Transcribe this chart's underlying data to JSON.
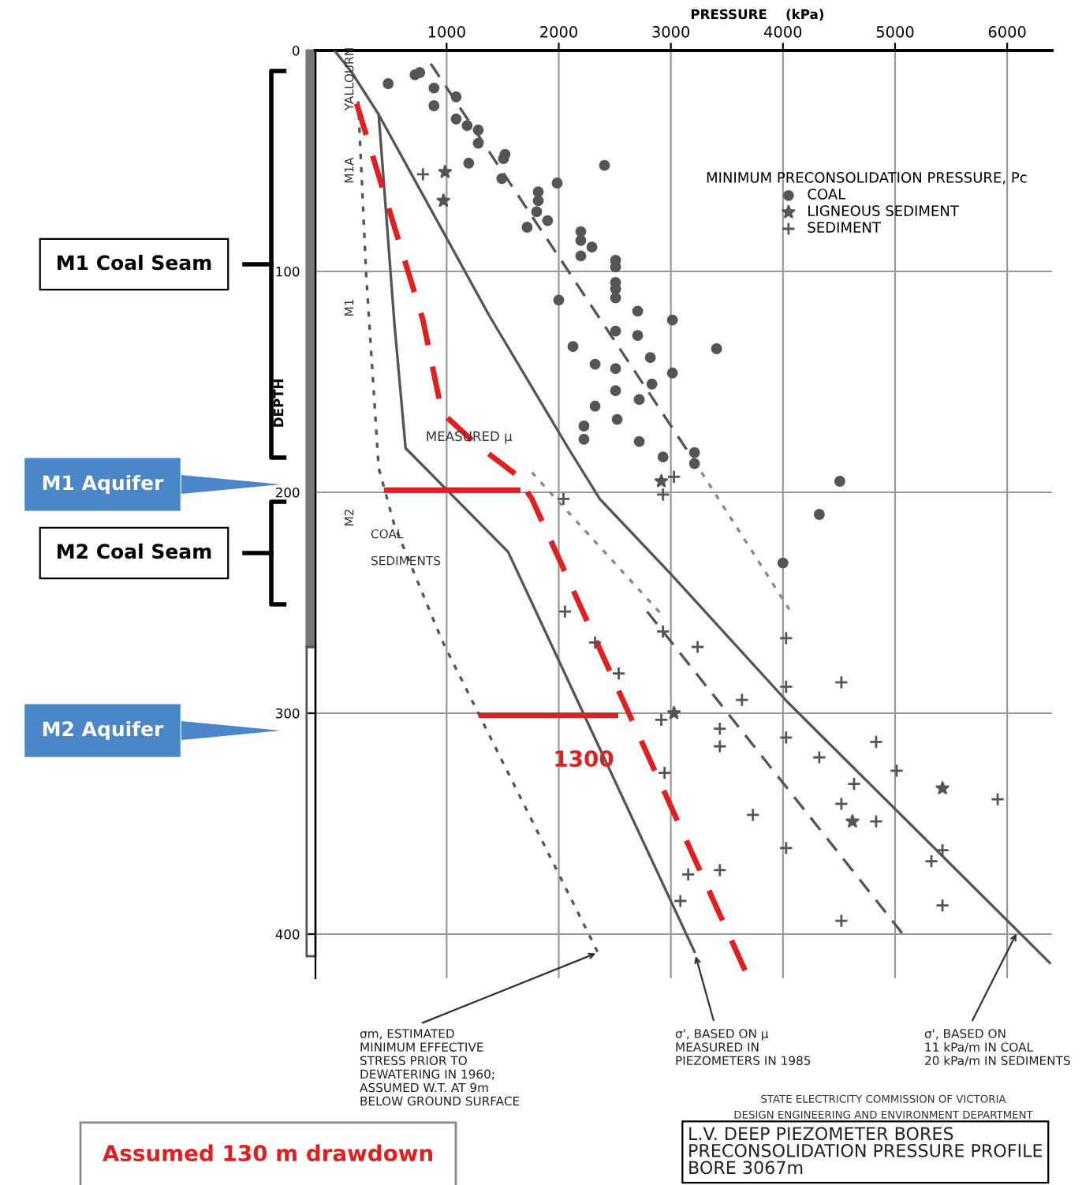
{
  "chart_data": {
    "type": "scatter",
    "xlabel": "PRESSURE    (kPa)",
    "ylabel": "DEPTH",
    "xlim": [
      -170,
      6400
    ],
    "ylim": [
      420,
      0
    ],
    "xticks": [
      1000,
      2000,
      3000,
      4000,
      5000,
      6000
    ],
    "yticks": [
      0,
      100,
      200,
      300,
      400
    ],
    "grid": true,
    "legend": "top right",
    "legend_title": "MINIMUM PRECONSOLIDATION PRESSURE, Pc",
    "series": [
      {
        "name": "COAL",
        "marker": "circle",
        "color": "#555555",
        "x": [
          479,
          718,
          760,
          887,
          887,
          1085,
          1085,
          1183,
          1282,
          1282,
          1197,
          1521,
          1507,
          1493,
          1986,
          1817,
          1817,
          1803,
          1901,
          1718,
          2408,
          2197,
          2197,
          2197,
          2296,
          2507,
          2507,
          2507,
          2507,
          2507,
          2000,
          2704,
          3014,
          2507,
          2704,
          2127,
          3408,
          2324,
          2507,
          2817,
          3014,
          2507,
          2831,
          2718,
          2324,
          2521,
          2225,
          2225,
          2718,
          2930,
          3211,
          3211,
          4507,
          4324,
          4000
        ],
        "values": [
          15,
          11,
          10,
          17,
          25,
          21,
          31,
          34,
          36,
          42,
          51,
          47,
          49,
          58,
          60,
          64,
          68,
          73,
          77,
          80,
          52,
          82,
          86,
          93,
          89,
          95,
          98,
          105,
          108,
          112,
          113,
          118,
          122,
          127,
          129,
          134,
          135,
          142,
          144,
          139,
          146,
          154,
          151,
          158,
          161,
          167,
          170,
          176,
          177,
          184,
          182,
          187,
          195,
          210,
          232
        ]
      },
      {
        "name": "LIGNEOUS SEDIMENT",
        "marker": "star",
        "color": "#555555",
        "x": [
          986,
          972,
          2915,
          3028,
          5423,
          4620
        ],
        "values": [
          55,
          68,
          195,
          300,
          334,
          349
        ]
      },
      {
        "name": "SEDIMENT",
        "marker": "cross",
        "color": "#555555",
        "x": [
          789,
          3028,
          2930,
          2042,
          2056,
          2930,
          4028,
          2324,
          3239,
          2535,
          4028,
          4521,
          3634,
          2915,
          3437,
          3437,
          4028,
          4831,
          4324,
          2944,
          5014,
          4634,
          4521,
          5915,
          3732,
          4831,
          4028,
          5423,
          5324,
          3437,
          3155,
          3085,
          5423,
          4521
        ],
        "values": [
          56,
          193,
          201,
          203,
          254,
          263,
          266,
          268,
          270,
          282,
          288,
          286,
          294,
          303,
          307,
          315,
          311,
          313,
          320,
          327,
          326,
          332,
          341,
          339,
          346,
          349,
          361,
          362,
          367,
          371,
          373,
          385,
          387,
          394
        ]
      },
      {
        "type": "line",
        "line_style": "solid",
        "color": "#555555",
        "x": [
          0,
          155,
          394,
          1380,
          2085,
          2366,
          3000,
          4042,
          6380
        ],
        "values": [
          0,
          10,
          29,
          120,
          180,
          203,
          237,
          295,
          413
        ]
      },
      {
        "type": "line",
        "line_style": "solid",
        "color": "#555555",
        "x": [
          394,
          535,
          634,
          1549,
          3211
        ],
        "values": [
          29,
          124,
          180,
          227,
          408
        ]
      },
      {
        "type": "line",
        "line_style": "dotted",
        "color": "#555555",
        "x": [
          211,
          282,
          394,
          535,
          958,
          2366
        ],
        "values": [
          23,
          101,
          189,
          215,
          267,
          410
        ]
      },
      {
        "type": "line",
        "line_style": "dashed",
        "color": "#555555",
        "x": [
          859,
          3211
        ],
        "values": [
          6,
          186
        ]
      },
      {
        "type": "line",
        "line_style": "dashed",
        "color": "#555555",
        "x": [
          2789,
          5070
        ],
        "values": [
          254,
          400
        ]
      },
      {
        "type": "line",
        "line_style": "dotted",
        "color": "#888888",
        "x": [
          3211,
          4056
        ],
        "values": [
          186,
          253
        ]
      },
      {
        "type": "line",
        "line_style": "dotted",
        "color": "#888888",
        "x": [
          1761,
          2930
        ],
        "values": [
          191,
          256
        ]
      },
      {
        "type": "line",
        "line_style": "dashed",
        "color": "#e02020",
        "x": [
          197,
          789,
          958,
          1282,
          1620,
          1761,
          3676
        ],
        "values": [
          24,
          122,
          164,
          179,
          192,
          203,
          418
        ]
      },
      {
        "type": "line",
        "line_style": "solid",
        "color": "#e02020",
        "x": [
          465,
          1634
        ],
        "values": [
          199,
          199
        ]
      },
      {
        "type": "line",
        "line_style": "solid",
        "color": "#e02020",
        "x": [
          1310,
          2507
        ],
        "values": [
          301,
          301
        ]
      }
    ],
    "annotations": [
      {
        "text": "MEASURED μ",
        "x": 1200,
        "y": 178
      },
      "1300",
      {
        "text": "σm, ESTIMATED\nMINIMUM EFFECTIVE\nSTRESS PRIOR TO\nDEWATERING IN 1960;\nASSUMED W.T. AT 9m\nBELOW GROUND SURFACE",
        "x": 2366,
        "y": 408
      },
      {
        "text": "σ', BASED ON μ\nMEASURED IN\nPIEZOMETERS IN 1985",
        "x": 3211,
        "y": 408
      },
      {
        "text": "σ', BASED ON\n11 kPa/m IN COAL\n20 kPa/m IN SEDIMENTS",
        "x": 6100,
        "y": 398
      },
      "M1 Aquifer",
      "M2 Aquifer",
      "Assumed 130 m drawdown",
      "STATE ELECTRICITY COMMISSION OF VICTORIA",
      "DESIGN ENGINEERING AND ENVIRONMENT DEPARTMENT",
      "L.V. DEEP PIEZOMETER BORES\nPRECONSOLIDATION PRESSURE PROFILE\nBORE 3067m",
      "YALLOURN",
      "M1A",
      "M1",
      "M2",
      "COAL",
      "SEDIMENTS",
      "M1 Coal Seam",
      "M2 Coal Seam"
    ]
  }
}
